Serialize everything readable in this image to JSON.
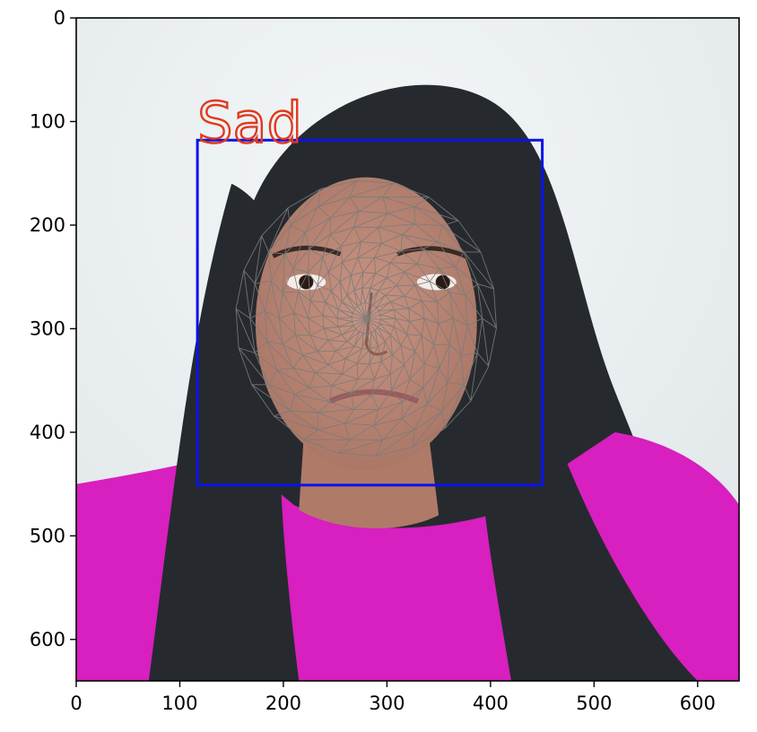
{
  "chart_data": {
    "type": "image",
    "title": "",
    "xlabel": "",
    "ylabel": "",
    "xlim": [
      0,
      640
    ],
    "ylim": [
      640,
      0
    ],
    "xticks": [
      0,
      100,
      200,
      300,
      400,
      500,
      600
    ],
    "yticks": [
      0,
      100,
      200,
      300,
      400,
      500,
      600
    ],
    "image": {
      "subject": "woman-face",
      "background_color": "#e9eef0",
      "shirt_color": "#d81fbf",
      "hair_color": "#262a2e",
      "skin_color": "#c08c7c"
    },
    "detections": [
      {
        "label": "Sad",
        "label_color": "#e03a1e",
        "box_color": "#0a13e6",
        "box": {
          "x_min": 117,
          "y_min": 118,
          "x_max": 450,
          "y_max": 451
        },
        "face_mesh": {
          "center_x": 280,
          "center_y": 280,
          "radius_x": 137,
          "radius_y": 196,
          "color": "#7b7b7b"
        }
      }
    ]
  }
}
